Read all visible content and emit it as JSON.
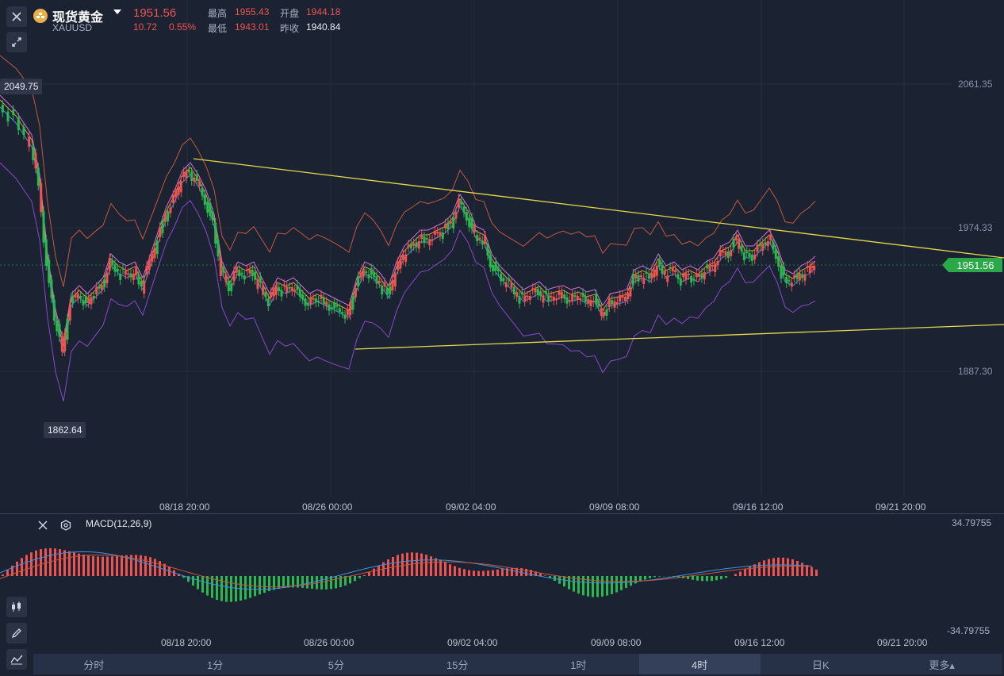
{
  "header": {
    "title": "现货黄金",
    "symbol": "XAUUSD",
    "price": "1951.56",
    "change": "10.72",
    "change_pct": "0.55%",
    "high_label": "最高",
    "high": "1955.43",
    "open_label": "开盘",
    "open": "1944.18",
    "low_label": "最低",
    "low": "1943.01",
    "prev_close_label": "昨收",
    "prev_close": "1940.84"
  },
  "price_axis": [
    "2061.35",
    "1974.33",
    "1887.30"
  ],
  "current_price_tag": "1951.56",
  "marker_high": "2049.75",
  "marker_low": "1862.64",
  "time_axis": [
    "08/18 20:00",
    "08/26 00:00",
    "09/02 04:00",
    "09/09 08:00",
    "09/16 12:00",
    "09/21 20:00"
  ],
  "macd": {
    "label": "MACD(12,26,9)",
    "axis_top": "34.79755",
    "axis_bottom": "-34.79755"
  },
  "tabs": [
    {
      "label": "分时",
      "active": false
    },
    {
      "label": "1分",
      "active": false
    },
    {
      "label": "5分",
      "active": false
    },
    {
      "label": "15分",
      "active": false
    },
    {
      "label": "1时",
      "active": false
    },
    {
      "label": "4时",
      "active": true
    },
    {
      "label": "日K",
      "active": false
    },
    {
      "label": "更多▴",
      "active": false
    }
  ],
  "icons": {
    "close": "close-icon",
    "expand": "expand-arrows-icon",
    "coin": "gold-coin-icon",
    "dropdown": "caret-down-icon",
    "macd_close": "close-icon",
    "macd_settings": "settings-icon",
    "candle_tool": "candlestick-icon",
    "draw_tool": "pencil-icon",
    "indicator_tool": "indicator-icon"
  },
  "colors": {
    "up": "#ef5350",
    "down": "#2db84d",
    "background": "#1b2232",
    "trendline": "#e6d84a",
    "price_tag": "#2aa84a"
  }
}
